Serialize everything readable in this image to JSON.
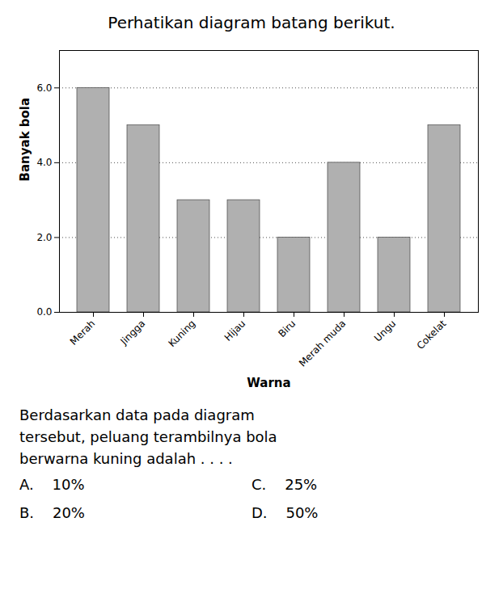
{
  "chart_data": {
    "type": "bar",
    "title": "Perhatikan diagram batang berikut.",
    "categories": [
      "Merah",
      "Jingga",
      "Kuning",
      "Hijau",
      "Biru",
      "Merah muda",
      "Ungu",
      "Cokelat"
    ],
    "values": [
      6,
      5,
      3,
      3,
      2,
      4,
      2,
      5
    ],
    "color": "#b0b0b0",
    "xlabel": "Warna",
    "ylabel": "Banyak bola",
    "ylim": [
      0,
      7
    ],
    "yticks": [
      0,
      2,
      4,
      6
    ],
    "grid": true,
    "annotations": [
      "Berdasarkan data pada diagram\ntersebut, peluang terambilnya bola\nberwarna kuning adalah . . . .",
      "A.    10%",
      "B.    20%",
      "C.    25%",
      "D.    50%"
    ]
  }
}
